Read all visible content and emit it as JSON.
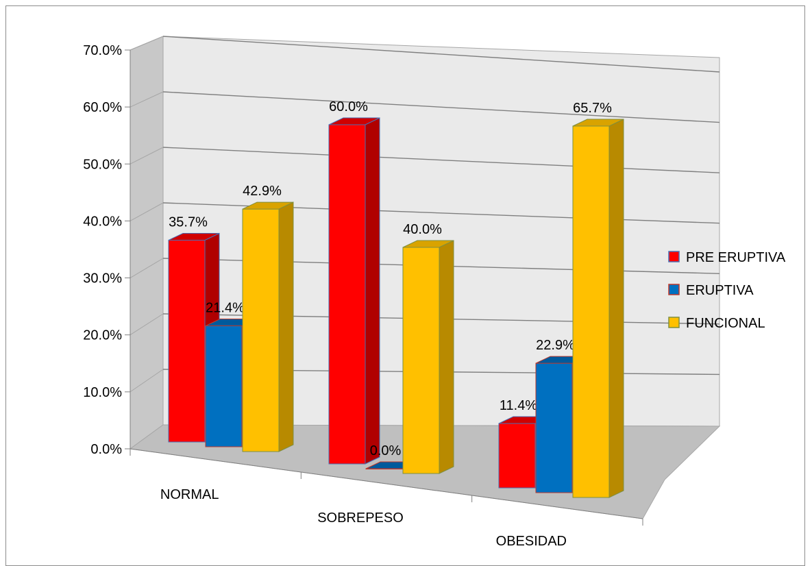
{
  "chart_data": {
    "type": "bar",
    "categories": [
      "NORMAL",
      "SOBREPESO",
      "OBESIDAD"
    ],
    "series": [
      {
        "name": "PRE ERUPTIVA",
        "values": [
          35.7,
          60.0,
          11.4
        ],
        "labels": [
          "35.7%",
          "60.0%",
          "11.4%"
        ],
        "color": "#ff0000",
        "side_color": "#b00000",
        "top_color": "#d00000",
        "edge": "#4a6fb5"
      },
      {
        "name": "ERUPTIVA",
        "values": [
          21.4,
          0.0,
          22.9
        ],
        "labels": [
          "21.4%",
          "0.0%",
          "22.9%"
        ],
        "color": "#0070c0",
        "side_color": "#004f8a",
        "top_color": "#005a9c",
        "edge": "#c0392b"
      },
      {
        "name": "FUNCIONAL",
        "values": [
          42.9,
          40.0,
          65.7
        ],
        "labels": [
          "42.9%",
          "40.0%",
          "65.7%"
        ],
        "color": "#ffc000",
        "side_color": "#b88a00",
        "top_color": "#d9a300",
        "edge": "#7f8f3f"
      }
    ],
    "ylim": [
      0,
      70
    ],
    "yticks": [
      "0.0%",
      "10.0%",
      "20.0%",
      "30.0%",
      "40.0%",
      "50.0%",
      "60.0%",
      "70.0%"
    ],
    "grid": true,
    "legend_position": "right",
    "style": "3d-clustered-column"
  }
}
